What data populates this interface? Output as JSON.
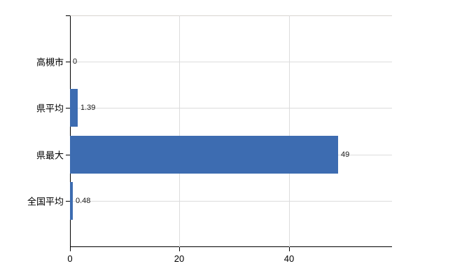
{
  "chart_data": {
    "type": "bar",
    "orientation": "horizontal",
    "title": "",
    "xlabel": "",
    "ylabel": "",
    "categories": [
      "高槻市",
      "県平均",
      "県最大",
      "全国平均"
    ],
    "values": [
      0,
      1.39,
      49,
      0.48
    ],
    "value_labels": [
      "0",
      "1.39",
      "49",
      "0.48"
    ],
    "x_ticks": [
      0,
      20,
      40
    ],
    "x_tick_labels": [
      "0",
      "20",
      "40"
    ],
    "xlim": [
      0,
      58.8
    ],
    "grid": "on",
    "legend": "none",
    "colors": {
      "bar": "#3d6cb1",
      "gridline": "#dcdcdc",
      "axis": "#000000",
      "text": "#000000",
      "value_text": "#1a1a1a",
      "plot_top_border": "#d8d4d0",
      "background": "#ffffff"
    }
  }
}
